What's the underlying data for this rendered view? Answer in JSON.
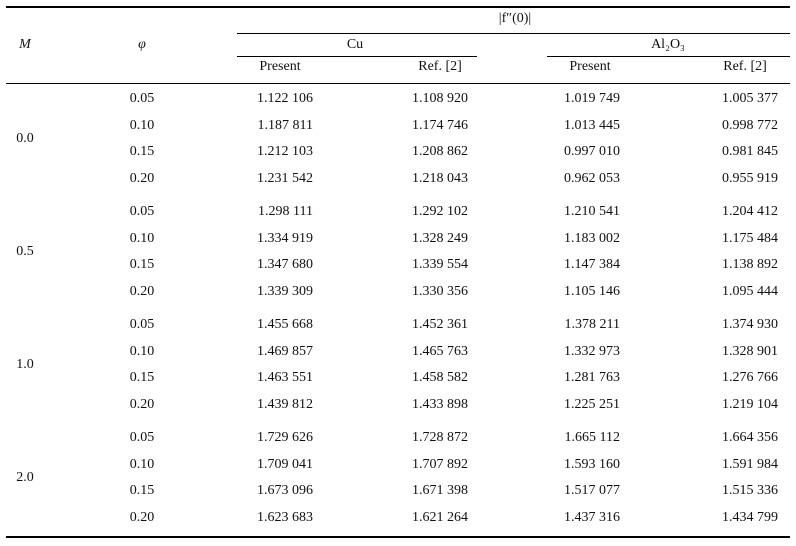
{
  "header": {
    "quantity": "|f″(0)|",
    "columns": [
      "M",
      "φ"
    ],
    "groups": [
      "Cu",
      "Al₂O₃"
    ],
    "subheaders": [
      "Present",
      "Ref. [2]",
      "Present",
      "Ref. [2]"
    ]
  },
  "table": {
    "groups": [
      {
        "M": "0.0",
        "rows": [
          [
            "0.05",
            "1.122 106",
            "1.108 920",
            "1.019 749",
            "1.005 377"
          ],
          [
            "0.10",
            "1.187 811",
            "1.174 746",
            "1.013 445",
            "0.998 772"
          ],
          [
            "0.15",
            "1.212 103",
            "1.208 862",
            "0.997 010",
            "0.981 845"
          ],
          [
            "0.20",
            "1.231 542",
            "1.218 043",
            "0.962 053",
            "0.955 919"
          ]
        ]
      },
      {
        "M": "0.5",
        "rows": [
          [
            "0.05",
            "1.298 111",
            "1.292 102",
            "1.210 541",
            "1.204 412"
          ],
          [
            "0.10",
            "1.334 919",
            "1.328 249",
            "1.183 002",
            "1.175 484"
          ],
          [
            "0.15",
            "1.347 680",
            "1.339 554",
            "1.147 384",
            "1.138 892"
          ],
          [
            "0.20",
            "1.339 309",
            "1.330 356",
            "1.105 146",
            "1.095 444"
          ]
        ]
      },
      {
        "M": "1.0",
        "rows": [
          [
            "0.05",
            "1.455 668",
            "1.452 361",
            "1.378 211",
            "1.374 930"
          ],
          [
            "0.10",
            "1.469 857",
            "1.465 763",
            "1.332 973",
            "1.328 901"
          ],
          [
            "0.15",
            "1.463 551",
            "1.458 582",
            "1.281 763",
            "1.276 766"
          ],
          [
            "0.20",
            "1.439 812",
            "1.433 898",
            "1.225 251",
            "1.219 104"
          ]
        ]
      },
      {
        "M": "2.0",
        "rows": [
          [
            "0.05",
            "1.729 626",
            "1.728 872",
            "1.665 112",
            "1.664 356"
          ],
          [
            "0.10",
            "1.709 041",
            "1.707 892",
            "1.593 160",
            "1.591 984"
          ],
          [
            "0.15",
            "1.673 096",
            "1.671 398",
            "1.517 077",
            "1.515 336"
          ],
          [
            "0.20",
            "1.623 683",
            "1.621 264",
            "1.437 316",
            "1.434 799"
          ]
        ]
      }
    ]
  }
}
